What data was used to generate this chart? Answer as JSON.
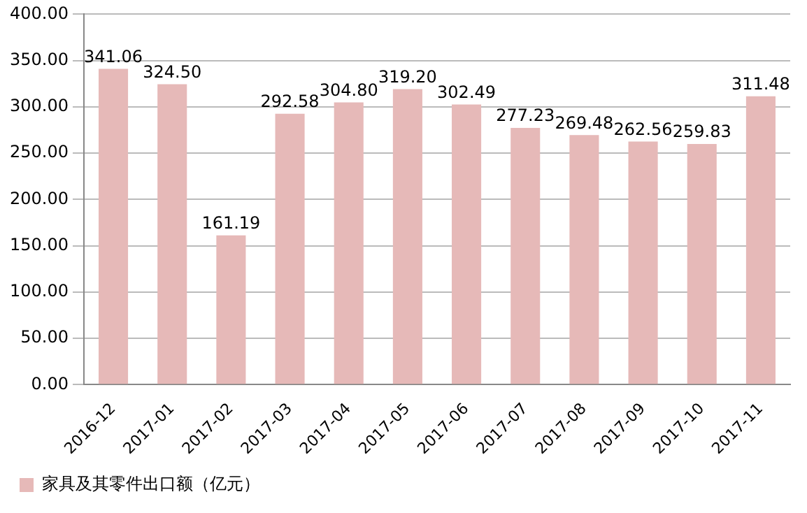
{
  "chart_data": {
    "type": "bar",
    "categories": [
      "2016-12",
      "2017-01",
      "2017-02",
      "2017-03",
      "2017-04",
      "2017-05",
      "2017-06",
      "2017-07",
      "2017-08",
      "2017-09",
      "2017-10",
      "2017-11"
    ],
    "series": [
      {
        "name": "家具及其零件出口额（亿元）",
        "color": "#e6b9b8",
        "values": [
          341.06,
          324.5,
          161.19,
          292.58,
          304.8,
          319.2,
          302.49,
          277.23,
          269.48,
          262.56,
          259.83,
          311.48
        ],
        "value_labels": [
          "341.06",
          "324.50",
          "161.19",
          "292.58",
          "304.80",
          "319.20",
          "302.49",
          "277.23",
          "269.48",
          "262.56",
          "259.83",
          "311.48"
        ]
      }
    ],
    "ylim": [
      0,
      400
    ],
    "yticks": [
      {
        "value": 0,
        "label": "0.00"
      },
      {
        "value": 50,
        "label": "50.00"
      },
      {
        "value": 100,
        "label": "100.00"
      },
      {
        "value": 150,
        "label": "150.00"
      },
      {
        "value": 200,
        "label": "200.00"
      },
      {
        "value": 250,
        "label": "250.00"
      },
      {
        "value": 300,
        "label": "300.00"
      },
      {
        "value": 350,
        "label": "350.00"
      },
      {
        "value": 400,
        "label": "400.00"
      }
    ],
    "grid": "y",
    "legend": "bottom"
  }
}
